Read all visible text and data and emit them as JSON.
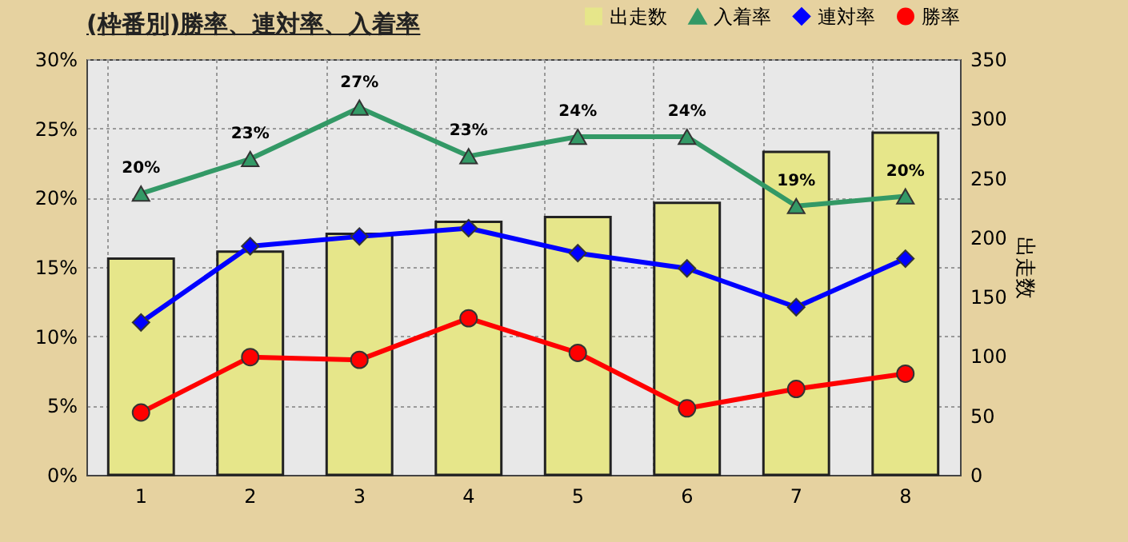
{
  "chart_data": {
    "type": "bar",
    "title": "(枠番別)勝率、連対率、入着率",
    "y2label": "出走数",
    "categories": [
      "1",
      "2",
      "3",
      "4",
      "5",
      "6",
      "7",
      "8"
    ],
    "series": [
      {
        "name": "出走数",
        "axis": "y2",
        "color": "#e6e68a",
        "values": [
          182,
          188,
          203,
          213,
          217,
          229,
          272,
          288
        ]
      },
      {
        "name": "入着率",
        "type": "line",
        "marker": "triangle",
        "color": "#339966",
        "values": [
          20.3,
          22.8,
          26.5,
          23.0,
          24.4,
          24.4,
          19.4,
          20.1
        ],
        "value_labels": [
          "20%",
          "23%",
          "27%",
          "23%",
          "24%",
          "24%",
          "19%",
          "20%"
        ]
      },
      {
        "name": "連対率",
        "type": "line",
        "marker": "diamond",
        "color": "#0000ff",
        "values": [
          11.0,
          16.5,
          17.2,
          17.8,
          16.0,
          14.9,
          12.1,
          15.6
        ]
      },
      {
        "name": "勝率",
        "type": "line",
        "marker": "circle",
        "color": "#ff0000",
        "values": [
          4.5,
          8.5,
          8.3,
          11.3,
          8.8,
          4.8,
          6.2,
          7.3
        ]
      }
    ],
    "ylim": [
      0,
      30
    ],
    "yticks": [
      {
        "value": 0,
        "label": "0%"
      },
      {
        "value": 5,
        "label": "5%"
      },
      {
        "value": 10,
        "label": "10%"
      },
      {
        "value": 15,
        "label": "15%"
      },
      {
        "value": 20,
        "label": "20%"
      },
      {
        "value": 25,
        "label": "25%"
      },
      {
        "value": 30,
        "label": "30%"
      }
    ],
    "y2lim": [
      0,
      350
    ],
    "y2ticks": [
      0,
      50,
      100,
      150,
      200,
      250,
      300,
      350
    ],
    "grid": true,
    "legend": "top right"
  }
}
